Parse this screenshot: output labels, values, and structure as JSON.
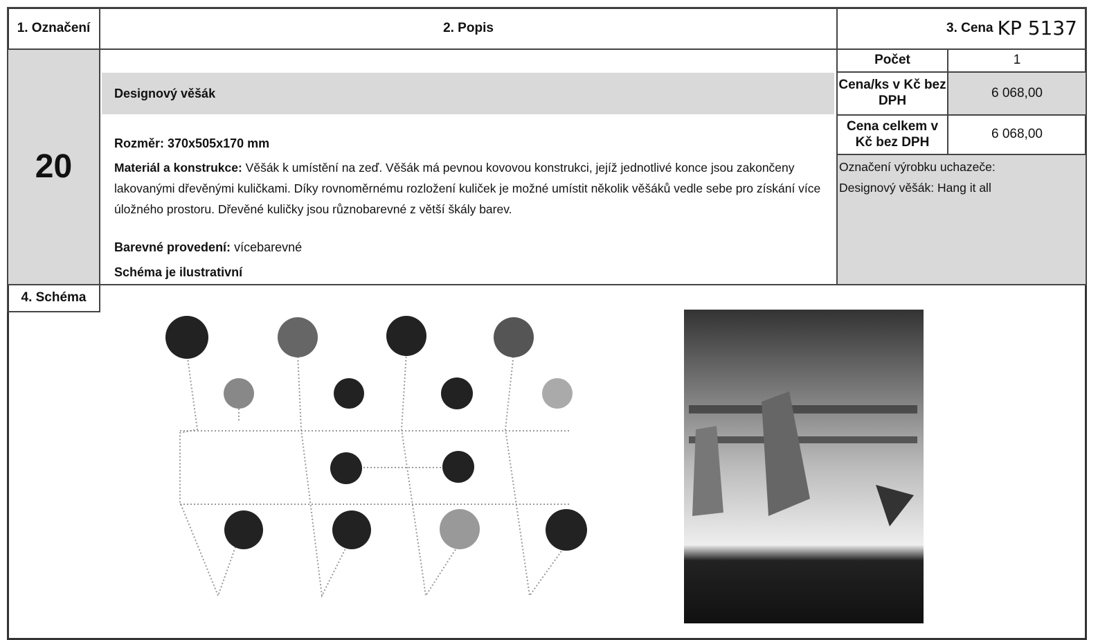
{
  "header": {
    "label": "1. Označení",
    "description": "2. Popis",
    "price": "3. Cena",
    "handwritten": "KP 5137"
  },
  "item": {
    "number": "20",
    "name": "Designový věšák",
    "size": "Rozměr: 370x505x170 mm",
    "material_label": "Materiál a konstrukce:",
    "material": "Věšák k umístění na zeď. Věšák má pevnou kovovou konstrukci, jejíž jednotlivé konce jsou zakončeny lakovanými dřevěnými kuličkami. Díky rovnoměrnému rozložení kuliček je možné umístit několik věšáků vedle sebe pro získání více úložného prostoru. Dřevěné kuličky jsou různobarevné z větší škály barev.",
    "color_label": "Barevné provedení:",
    "color": "vícebarevné",
    "note": "Schéma je ilustrativní"
  },
  "price_table": {
    "rows": [
      [
        "Počet",
        "1"
      ],
      [
        "Cena/ks v Kč bez DPH",
        "6 068,00"
      ],
      [
        "Cena celkem v Kč bez DPH",
        "6 068,00"
      ]
    ]
  },
  "bidder": {
    "label": "Označení výrobku uchazeče:",
    "value": "Designový věšák: Hang it all"
  },
  "schema": {
    "label": "4. Schéma"
  }
}
